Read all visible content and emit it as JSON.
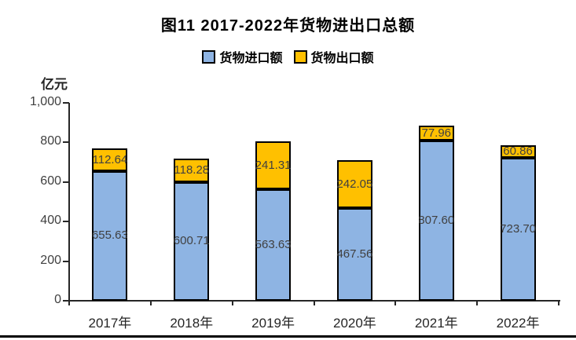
{
  "page": {
    "background": "#ffffff"
  },
  "chart_data": {
    "type": "bar",
    "stacked": true,
    "title": "图11 2017-2022年货物进出口总额",
    "unit_label": "亿元",
    "xlabel": "",
    "ylabel": "亿元",
    "categories": [
      "2017年",
      "2018年",
      "2019年",
      "2020年",
      "2021年",
      "2022年"
    ],
    "series": [
      {
        "name": "货物进口额",
        "color": "#8EB4E3",
        "values": [
          655.63,
          600.71,
          563.63,
          467.56,
          807.6,
          723.7
        ],
        "labels": [
          "655.63",
          "600.71",
          "563.63",
          "467.56",
          "807.60",
          "723.70"
        ]
      },
      {
        "name": "货物出口额",
        "color": "#FFC000",
        "values": [
          112.64,
          118.28,
          241.31,
          242.05,
          77.96,
          60.86
        ],
        "labels": [
          "112.64",
          "118.28",
          "241.31",
          "242.05",
          "77.96",
          "60.86"
        ]
      }
    ],
    "totals": [
      768.27,
      718.99,
      804.94,
      709.61,
      885.56,
      784.56
    ],
    "ylim": [
      0,
      1000
    ],
    "yticks": [
      {
        "value": 0,
        "label": "0"
      },
      {
        "value": 200,
        "label": "200"
      },
      {
        "value": 400,
        "label": "400"
      },
      {
        "value": 600,
        "label": "600"
      },
      {
        "value": 800,
        "label": "800"
      },
      {
        "value": 1000,
        "label": "1,000"
      }
    ],
    "legend_position": "top",
    "grid": false
  },
  "colors": {
    "import_fill": "#8EB4E3",
    "export_fill": "#FFC000",
    "bar_border": "#000000",
    "axis": "#262626",
    "data_label_text": "#404040",
    "title_text": "#000000",
    "bottom_rule": "#000000"
  }
}
